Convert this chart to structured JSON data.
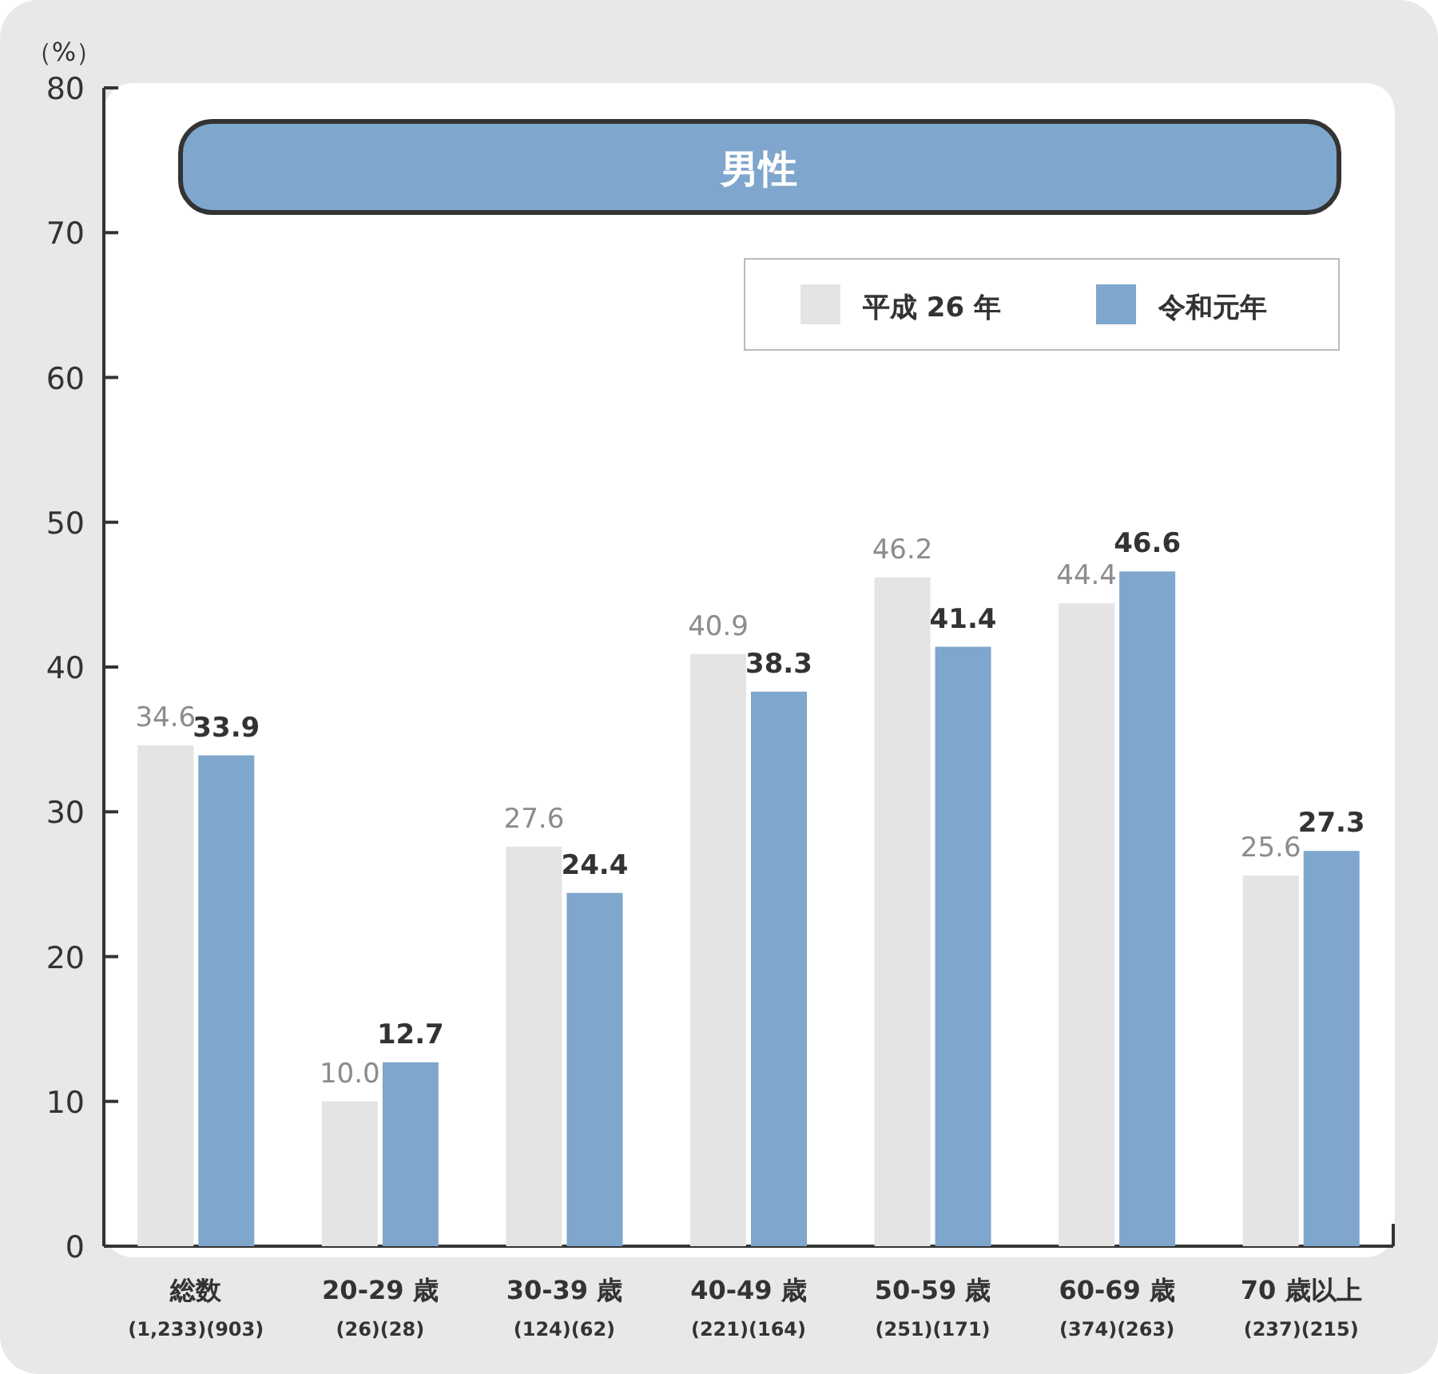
{
  "chart_data": {
    "type": "bar",
    "title": "男性",
    "ylabel": "（%）",
    "categories": [
      "総数\n(1,233)(903)",
      "20-29 歳\n(26)(28)",
      "30-39 歳\n(124)(62)",
      "40-49 歳\n(221)(164)",
      "50-59 歳\n(251)(171)",
      "60-69 歳\n(374)(263)",
      "70 歳以上\n(237)(215)"
    ],
    "series": [
      {
        "name": "平成 26 年",
        "color": "#e4e4e4",
        "values": [
          34.6,
          10.0,
          27.6,
          40.9,
          46.2,
          44.4,
          25.6
        ],
        "value_labels": [
          "34.6",
          "10.0",
          "27.6",
          "40.9",
          "46.2",
          "44.4",
          "25.6"
        ]
      },
      {
        "name": "令和元年",
        "color": "#7fa6cc",
        "values": [
          33.9,
          12.7,
          24.4,
          38.3,
          41.4,
          46.6,
          27.3
        ],
        "value_labels": [
          "33.9",
          "12.7",
          "24.4",
          "38.3",
          "41.4",
          "46.6",
          "27.3"
        ]
      }
    ],
    "ylim": [
      0,
      80
    ],
    "yticks": [
      0,
      10,
      20,
      30,
      40,
      50,
      60,
      70,
      80
    ],
    "legend": "top right",
    "grid": false
  }
}
